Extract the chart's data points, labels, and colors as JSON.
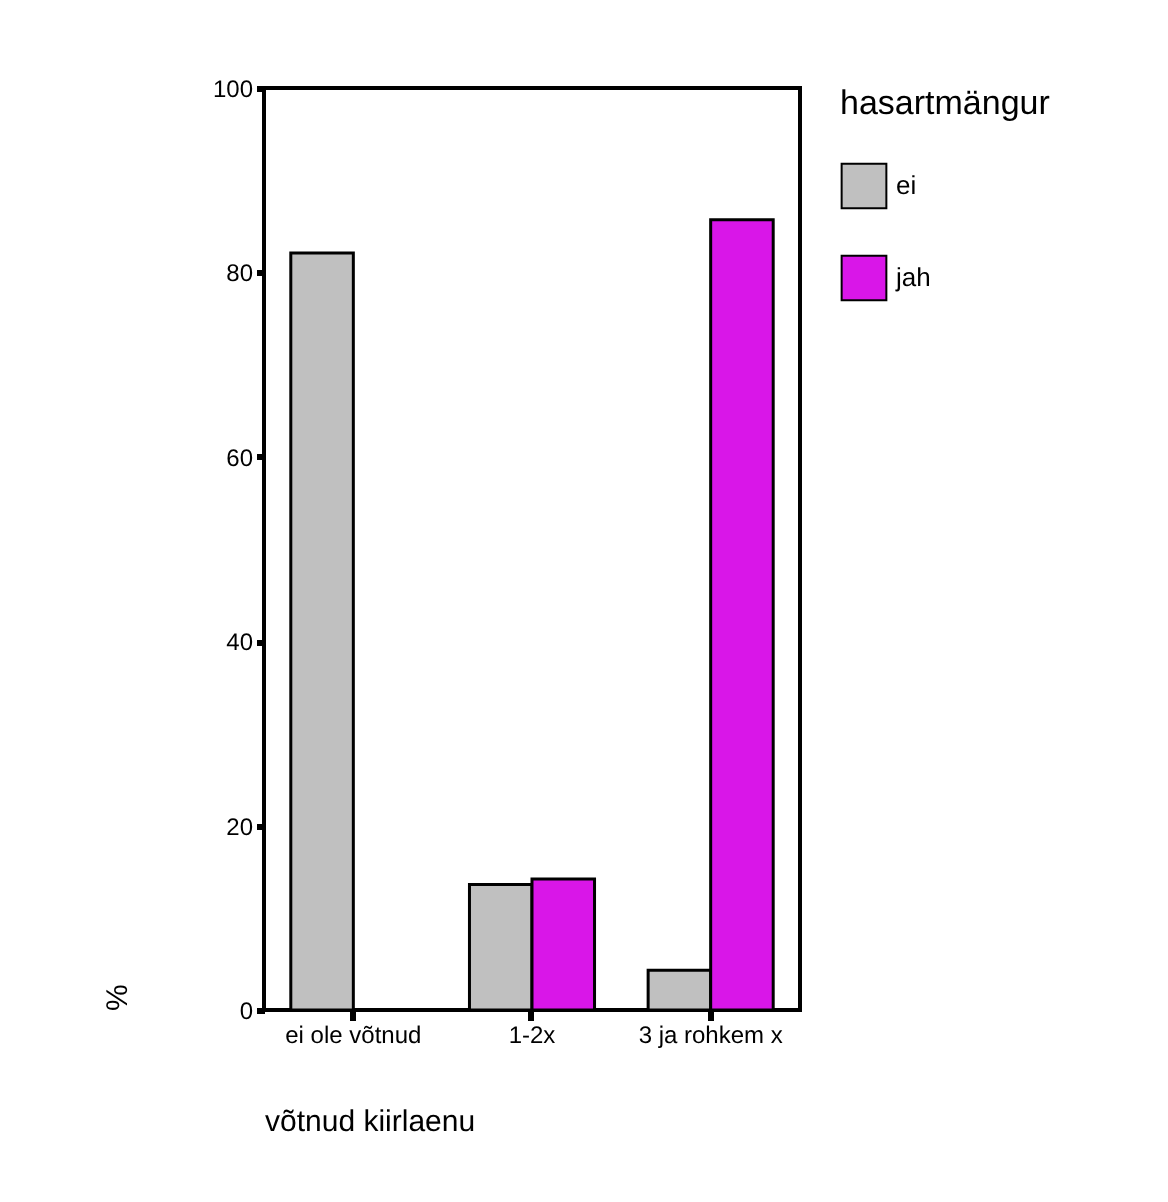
{
  "chart_data": {
    "type": "bar",
    "xlabel": "võtnud kiirlaenu",
    "ylabel": "%",
    "legend_title": "hasartmängur",
    "categories": [
      "ei ole võtnud",
      "1-2x",
      "3 ja rohkem x"
    ],
    "series": [
      {
        "name": "ei",
        "color": "#c0c0c0",
        "values": [
          82.1,
          13.6,
          4.3
        ]
      },
      {
        "name": "jah",
        "color": "#d916e8",
        "values": [
          null,
          14.2,
          85.7
        ]
      }
    ],
    "ylim": [
      0,
      100
    ],
    "yticks": [
      0,
      20,
      40,
      60,
      80,
      100
    ],
    "grid": false,
    "legend": "right"
  }
}
